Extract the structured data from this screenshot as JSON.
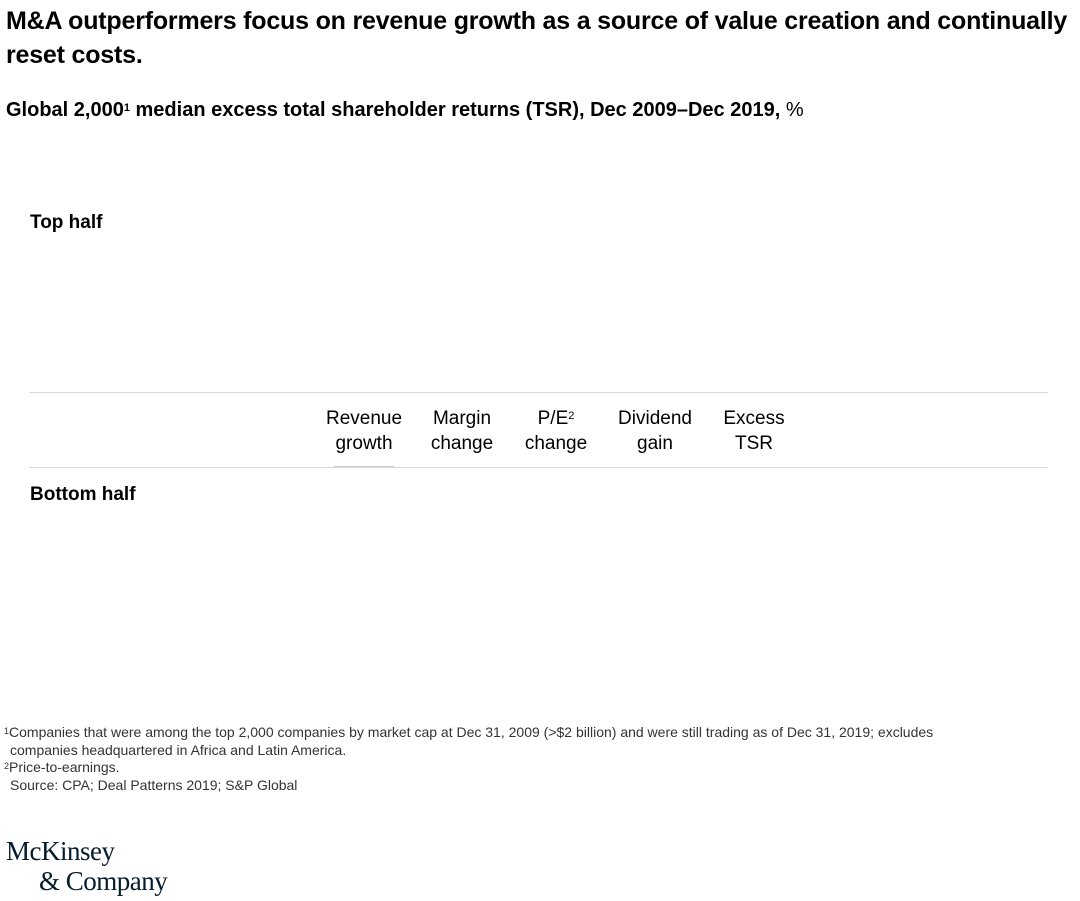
{
  "header": {
    "title": "M&A outperformers focus on revenue growth as a source of value creation and continually reset costs.",
    "subtitle_main": "Global 2,000",
    "subtitle_sup": "1",
    "subtitle_rest": " median excess total shareholder returns (TSR), Dec 2009–Dec 2019,",
    "subtitle_unit": " %"
  },
  "chart_data": {
    "type": "bar",
    "title": "Global 2,000 median excess total shareholder returns (TSR), Dec 2009–Dec 2019, %",
    "panels": [
      "Top half",
      "Bottom half"
    ],
    "categories": [
      "Revenue growth",
      "Margin change",
      "P/E change",
      "Dividend gain",
      "Excess TSR"
    ],
    "category_labels": [
      {
        "line1": "Revenue",
        "line2": "growth",
        "sup": ""
      },
      {
        "line1": "Margin",
        "line2": "change",
        "sup": ""
      },
      {
        "line1": "P/E",
        "line2": "change",
        "sup": "2"
      },
      {
        "line1": "Dividend",
        "line2": "gain",
        "sup": ""
      },
      {
        "line1": "Excess",
        "line2": "TSR",
        "sup": ""
      }
    ],
    "series": [],
    "xlabel": "",
    "ylabel": "%"
  },
  "footnotes": {
    "fn1_sup": "1",
    "fn1_line1": "Companies that were among the top 2,000 companies by market cap at Dec 31, 2009 (>$2 billion) and were still trading as of Dec 31, 2019; excludes",
    "fn1_line2": "companies headquartered in Africa and Latin America.",
    "fn2_sup": "2",
    "fn2_text": "Price-to-earnings.",
    "source": "Source: CPA; Deal Patterns 2019; S&P Global"
  },
  "logo": {
    "line1": "McKinsey",
    "line2": "& Company"
  }
}
